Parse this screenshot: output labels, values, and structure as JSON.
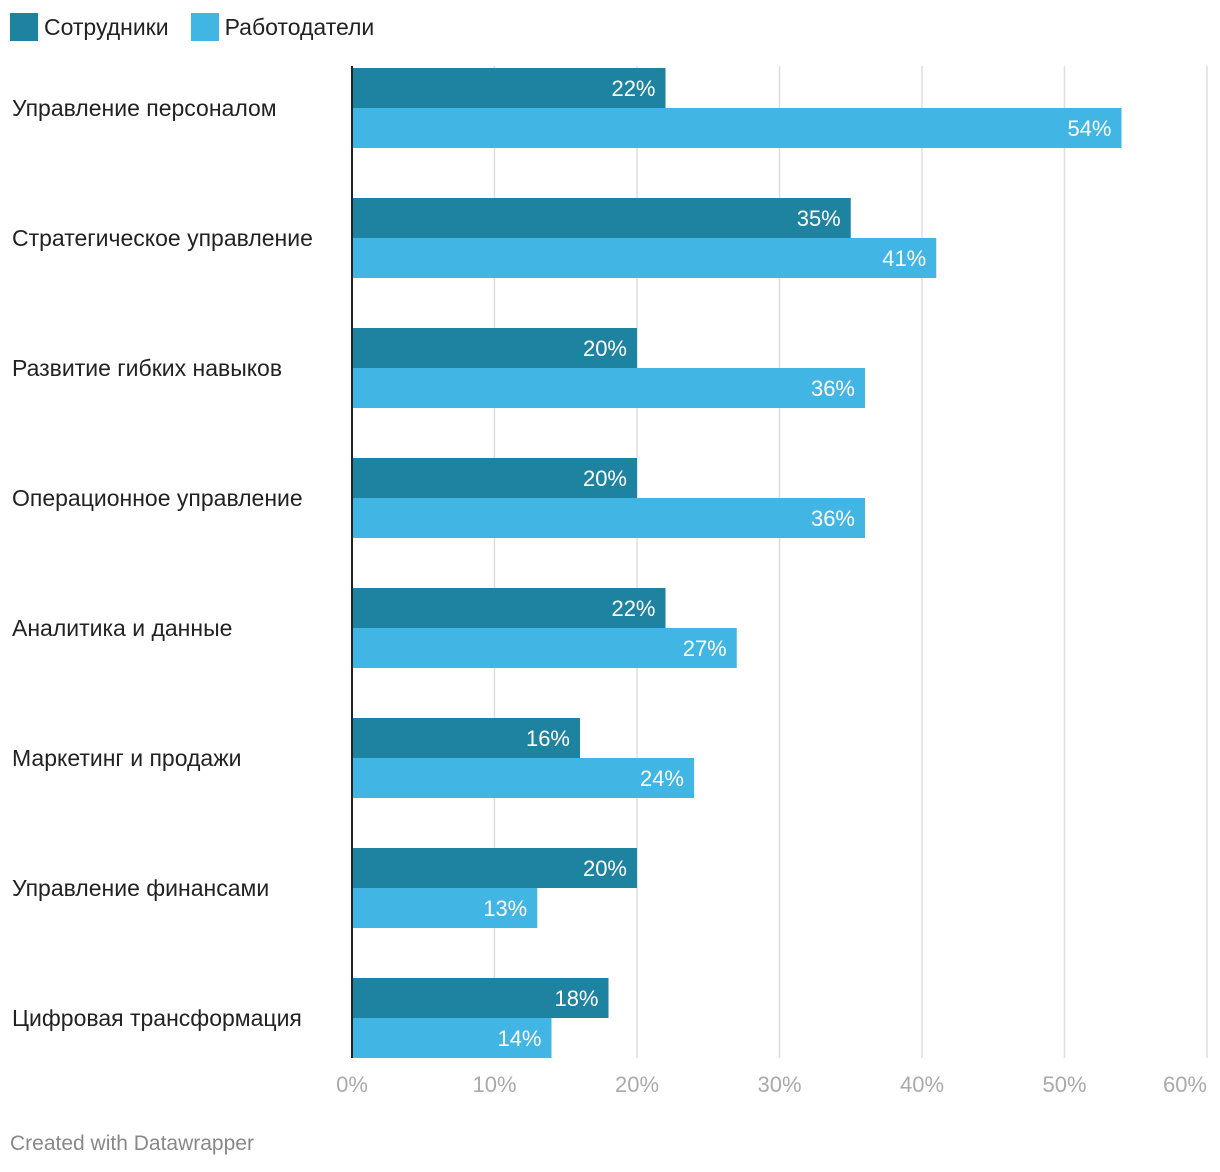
{
  "chart_data": {
    "type": "bar",
    "orientation": "horizontal",
    "categories": [
      "Управление персоналом",
      "Стратегическое управление",
      "Развитие гибких навыков",
      "Операционное управление",
      "Аналитика и данные",
      "Маркетинг и продажи",
      "Управление финансами",
      "Цифровая трансформация"
    ],
    "series": [
      {
        "name": "Сотрудники",
        "color": "#1e82a1",
        "values": [
          22,
          35,
          20,
          20,
          22,
          16,
          20,
          18
        ]
      },
      {
        "name": "Работодатели",
        "color": "#41b5e3",
        "values": [
          54,
          41,
          36,
          36,
          27,
          24,
          13,
          14
        ]
      }
    ],
    "xlim": [
      0,
      60
    ],
    "xticks": [
      0,
      10,
      20,
      30,
      40,
      50,
      60
    ],
    "tick_suffix": "%",
    "value_suffix": "%",
    "grid": true,
    "legend_position": "top-left",
    "title": "",
    "xlabel": "",
    "ylabel": ""
  },
  "footer": {
    "credit": "Created with Datawrapper"
  }
}
